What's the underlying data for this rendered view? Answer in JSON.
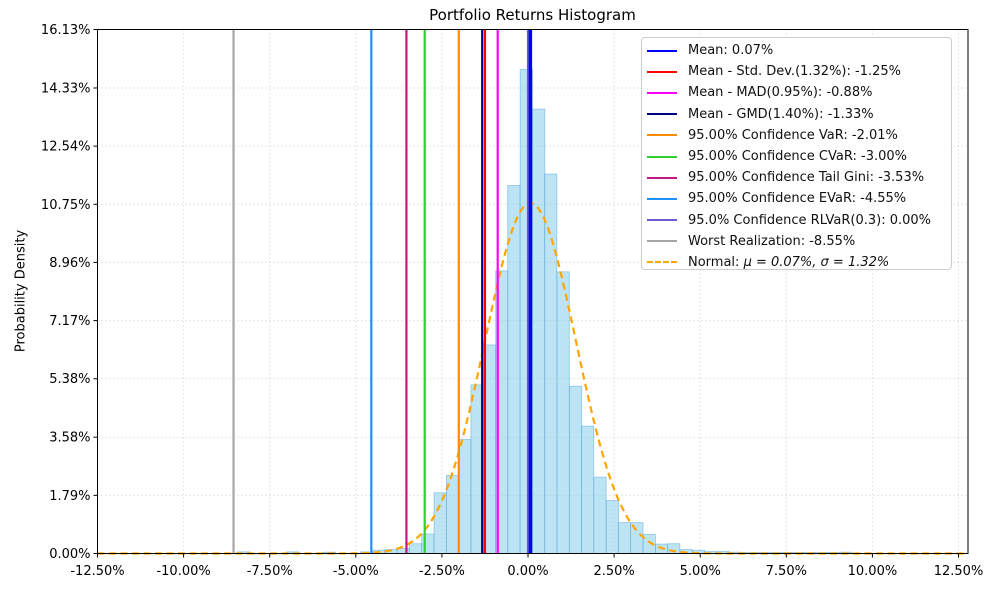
{
  "chart_data": {
    "type": "histogram",
    "title": "Portfolio Returns Histogram",
    "xlabel": "",
    "ylabel": "Probability Density",
    "x_tick_values": [
      -12.5,
      -10.0,
      -7.5,
      -5.0,
      -2.5,
      0.0,
      2.5,
      5.0,
      7.5,
      10.0,
      12.5
    ],
    "x_tick_labels": [
      "-12.50%",
      "-10.00%",
      "-7.50%",
      "-5.00%",
      "-2.50%",
      "0.00%",
      "2.50%",
      "5.00%",
      "7.50%",
      "10.00%",
      "12.50%"
    ],
    "y_tick_values": [
      0,
      1.79,
      3.58,
      5.38,
      7.17,
      8.96,
      10.75,
      12.54,
      14.33,
      16.13
    ],
    "y_tick_labels": [
      "0.00%",
      "1.79%",
      "3.58%",
      "5.38%",
      "7.17%",
      "8.96%",
      "10.75%",
      "12.54%",
      "14.33%",
      "16.13%"
    ],
    "xlim": [
      -12.5,
      12.775
    ],
    "ylim": [
      0,
      16.13
    ],
    "grid": "dotted",
    "grid_color": "#c9c9c9",
    "histogram": {
      "fill": "rgba(135,206,235,0.55)",
      "edge": "rgba(90,170,215,0.6)",
      "bin_width": 0.357,
      "bars": [
        [
          -8.26,
          0.05
        ],
        [
          -6.83,
          0.05
        ],
        [
          -5.76,
          0.04
        ],
        [
          -4.69,
          0.05
        ],
        [
          -4.33,
          0.1
        ],
        [
          -3.98,
          0.12
        ],
        [
          -3.62,
          0.15
        ],
        [
          -3.26,
          0.3
        ],
        [
          -2.91,
          0.6
        ],
        [
          -2.55,
          1.87
        ],
        [
          -2.19,
          2.4
        ],
        [
          -1.83,
          3.51
        ],
        [
          -1.48,
          5.19
        ],
        [
          -1.12,
          6.42
        ],
        [
          -0.76,
          8.7
        ],
        [
          -0.41,
          11.33
        ],
        [
          -0.05,
          14.9
        ],
        [
          0.31,
          13.68
        ],
        [
          0.66,
          11.68
        ],
        [
          1.02,
          8.67
        ],
        [
          1.38,
          5.15
        ],
        [
          1.73,
          3.92
        ],
        [
          2.09,
          2.35
        ],
        [
          2.45,
          1.63
        ],
        [
          2.8,
          0.95
        ],
        [
          3.16,
          0.95
        ],
        [
          3.52,
          0.59
        ],
        [
          3.88,
          0.29
        ],
        [
          4.23,
          0.3
        ],
        [
          4.59,
          0.12
        ],
        [
          4.95,
          0.1
        ],
        [
          5.3,
          0.06
        ],
        [
          5.66,
          0.06
        ],
        [
          6.02,
          0.04
        ],
        [
          6.37,
          0.03
        ],
        [
          6.73,
          0.03
        ],
        [
          7.09,
          0.03
        ],
        [
          7.45,
          0.03
        ],
        [
          7.8,
          0.03
        ],
        [
          8.16,
          0.03
        ],
        [
          8.52,
          0.03
        ],
        [
          8.87,
          0.03
        ],
        [
          9.23,
          0.04
        ]
      ]
    },
    "normal_curve": {
      "name": "normal",
      "label": "Normal: ",
      "label_math": "μ = 0.07%, σ = 1.32%",
      "mu": 0.07,
      "sigma": 1.32,
      "peak": 10.79,
      "color": "#FFA500",
      "style": "dashed"
    },
    "vlines": [
      {
        "name": "mean",
        "label": "Mean: 0.07%",
        "value": 0.07,
        "color": "#0000FF",
        "width": 3.4
      },
      {
        "name": "mean-std-dev",
        "label": "Mean - Std. Dev.(1.32%): -1.25%",
        "value": -1.25,
        "color": "#FF0000",
        "width": 2.2
      },
      {
        "name": "mean-mad",
        "label": "Mean - MAD(0.95%): -0.88%",
        "value": -0.88,
        "color": "#FF00FF",
        "width": 2.2
      },
      {
        "name": "mean-gmd",
        "label": "Mean - GMD(1.40%): -1.33%",
        "value": -1.33,
        "color": "#000080",
        "width": 2.2
      },
      {
        "name": "var",
        "label": "95.00% Confidence VaR: -2.01%",
        "value": -2.01,
        "color": "#FF8C00",
        "width": 2.2
      },
      {
        "name": "cvar",
        "label": "95.00% Confidence CVaR: -3.00%",
        "value": -3.0,
        "color": "#32CD32",
        "width": 2.2
      },
      {
        "name": "tail-gini",
        "label": "95.00% Confidence Tail Gini: -3.53%",
        "value": -3.53,
        "color": "#C71585",
        "width": 2.2
      },
      {
        "name": "evar",
        "label": "95.00% Confidence EVaR: -4.55%",
        "value": -4.55,
        "color": "#1E90FF",
        "width": 2.2
      },
      {
        "name": "rlvar",
        "label": "95.0% Confidence RLVaR(0.3): 0.00%",
        "value": 0.0,
        "color": "#6A5ACD",
        "width": 2.2
      },
      {
        "name": "worst-realization",
        "label": "Worst Realization: -8.55%",
        "value": -8.55,
        "color": "#A6A6A6",
        "width": 2.2
      }
    ]
  }
}
